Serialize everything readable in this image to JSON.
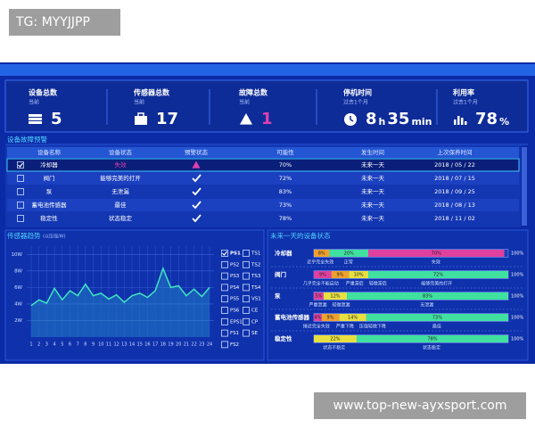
{
  "watermark_top": "TG: MYYJJPP",
  "watermark_bottom": "www.top-new-ayxsport.com",
  "kpis": [
    {
      "title": "设备总数",
      "subtitle": "当前",
      "icon": "server",
      "parts": [
        "5"
      ]
    },
    {
      "title": "传感器总数",
      "subtitle": "当前",
      "icon": "case",
      "parts": [
        "17"
      ]
    },
    {
      "title": "故障总数",
      "subtitle": "当前",
      "icon": "warning",
      "parts": [
        "1"
      ],
      "color": "#e040b0"
    },
    {
      "title": "停机时间",
      "subtitle": "过去1个月",
      "icon": "clock",
      "parts": [
        "8",
        "h",
        "35",
        "min"
      ]
    },
    {
      "title": "利用率",
      "subtitle": "过去1个月",
      "icon": "bars",
      "parts": [
        "78",
        "%"
      ]
    }
  ],
  "fault_table": {
    "title": "设备故障预警",
    "columns": [
      "设备名称",
      "设备状态",
      "预警状态",
      "可能性",
      "发生时间",
      "上次保养时间"
    ],
    "rows": [
      {
        "checked": true,
        "alert": "warning",
        "status_color": "#e040b0",
        "cells": [
          "冷却器",
          "失效",
          "70%",
          "未来一天",
          "2018 / 05 / 22"
        ]
      },
      {
        "checked": false,
        "alert": "check",
        "cells": [
          "阀门",
          "能够完美的打开",
          "72%",
          "未来一天",
          "2018 / 07 / 15"
        ]
      },
      {
        "checked": false,
        "alert": "check",
        "cells": [
          "泵",
          "无泄漏",
          "83%",
          "未来一天",
          "2018 / 09 / 25"
        ]
      },
      {
        "checked": false,
        "alert": "check",
        "cells": [
          "蓄电池传感器",
          "最佳",
          "73%",
          "未来一天",
          "2018 / 08 / 13"
        ]
      },
      {
        "checked": false,
        "alert": "check",
        "cells": [
          "稳定性",
          "状态稳定",
          "78%",
          "未来一天",
          "2018 / 11 / 02"
        ]
      }
    ]
  },
  "sensor_trend": {
    "type": "line",
    "title": "传感器趋势",
    "unit_note": "(以压强/W)",
    "color": "#3ee6c0",
    "ylim": [
      0,
      11
    ],
    "yticks": [
      {
        "value": 2,
        "label": "2W"
      },
      {
        "value": 4,
        "label": "4W"
      },
      {
        "value": 6,
        "label": "6W"
      },
      {
        "value": 8,
        "label": "8W"
      },
      {
        "value": 10,
        "label": "10W"
      }
    ],
    "x": [
      1,
      2,
      3,
      4,
      5,
      6,
      7,
      8,
      9,
      10,
      11,
      12,
      13,
      14,
      15,
      16,
      17,
      18,
      19,
      20,
      21,
      22,
      23,
      24
    ],
    "values": [
      3.8,
      4.5,
      4.1,
      5.9,
      4.5,
      5.6,
      5.0,
      6.4,
      5.0,
      5.3,
      4.6,
      5.1,
      4.2,
      5.0,
      5.3,
      4.8,
      5.6,
      8.3,
      6.0,
      6.2,
      5.0,
      5.8,
      4.9,
      6.0
    ],
    "legend": [
      {
        "name": "PS1",
        "checked": true
      },
      {
        "name": "TS1",
        "checked": false
      },
      {
        "name": "PS2",
        "checked": false
      },
      {
        "name": "TS2",
        "checked": false
      },
      {
        "name": "PS3",
        "checked": false
      },
      {
        "name": "TS3",
        "checked": false
      },
      {
        "name": "PS4",
        "checked": false
      },
      {
        "name": "TS4",
        "checked": false
      },
      {
        "name": "PS5",
        "checked": false
      },
      {
        "name": "VS1",
        "checked": false
      },
      {
        "name": "PS6",
        "checked": false
      },
      {
        "name": "CE",
        "checked": false
      },
      {
        "name": "EPS1",
        "checked": false
      },
      {
        "name": "CP",
        "checked": false
      },
      {
        "name": "FS1",
        "checked": false
      },
      {
        "name": "SE",
        "checked": false
      },
      {
        "name": "FS2",
        "checked": false
      }
    ]
  },
  "device_status": {
    "title": "未来一天的设备状态",
    "total": {
      "value": 100,
      "label": "100%"
    },
    "rows": [
      {
        "name": "冷却器",
        "segments": [
          {
            "value": 8,
            "label": "8%",
            "color": "#f0a030",
            "caption": "近乎完全失效"
          },
          {
            "value": 20,
            "label": "20%",
            "color": "#40e0a0",
            "caption": "正常"
          },
          {
            "value": 70,
            "label": "70%",
            "color": "#e040a0",
            "caption": "失效"
          }
        ]
      },
      {
        "name": "阀门",
        "segments": [
          {
            "value": 9,
            "label": "9%",
            "color": "#e040a0",
            "caption": "几乎完全不能启动"
          },
          {
            "value": 9,
            "label": "9%",
            "color": "#f0a030",
            "caption": "严重滞后"
          },
          {
            "value": 10,
            "label": "10%",
            "color": "#e8e040",
            "caption": "轻微滞后"
          },
          {
            "value": 72,
            "label": "72%",
            "color": "#40e0a0",
            "caption": "能够完美的打开"
          }
        ]
      },
      {
        "name": "泵",
        "segments": [
          {
            "value": 5,
            "label": "5%",
            "color": "#e040a0",
            "caption": "严重泄漏"
          },
          {
            "value": 12,
            "label": "12%",
            "color": "#e8e040",
            "caption": "轻微泄漏"
          },
          {
            "value": 83,
            "label": "83%",
            "color": "#40e0a0",
            "caption": "无泄漏"
          }
        ]
      },
      {
        "name": "蓄电池传感器",
        "segments": [
          {
            "value": 4,
            "label": "4%",
            "color": "#e040a0",
            "caption": "接近完全失效"
          },
          {
            "value": 9,
            "label": "9%",
            "color": "#f0a030",
            "caption": "严重下降"
          },
          {
            "value": 14,
            "label": "14%",
            "color": "#e8e040",
            "caption": "压强轻微下降"
          },
          {
            "value": 73,
            "label": "73%",
            "color": "#40e0a0",
            "caption": "最佳"
          }
        ]
      },
      {
        "name": "稳定性",
        "segments": [
          {
            "value": 22,
            "label": "22%",
            "color": "#e8e040",
            "caption": "状态不稳定"
          },
          {
            "value": 78,
            "label": "78%",
            "color": "#40e0a0",
            "caption": "状态稳定"
          }
        ]
      }
    ]
  }
}
